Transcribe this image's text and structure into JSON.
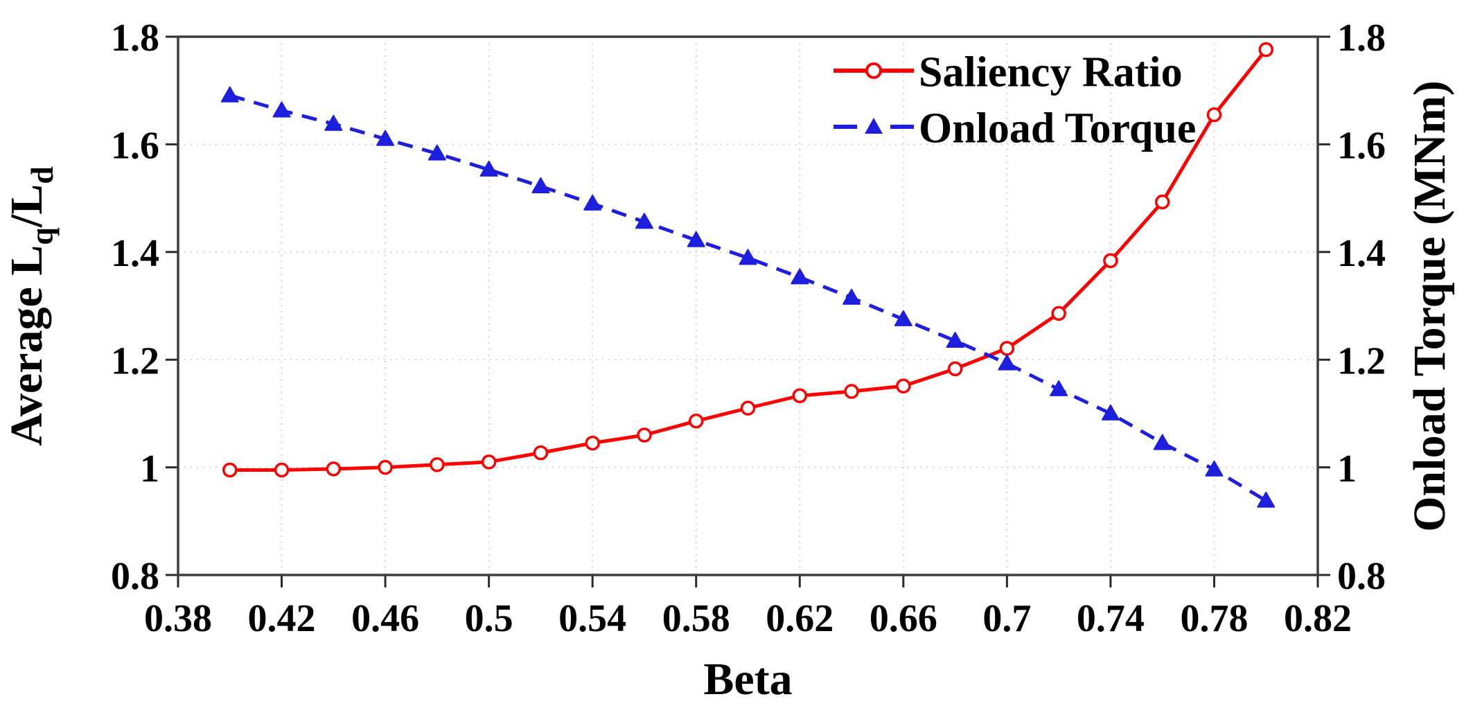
{
  "figure": {
    "background": "#ffffff"
  },
  "chart_data": {
    "type": "line",
    "title": "",
    "xlabel": "Beta",
    "ylabel_left": "Average Lq/Ld",
    "ylabel_left_segments": [
      {
        "text": "Average L",
        "sub": false
      },
      {
        "text": "q",
        "sub": true
      },
      {
        "text": "/L",
        "sub": false
      },
      {
        "text": "d",
        "sub": true
      }
    ],
    "ylabel_right": "Onload Torque (MNm)",
    "xlim": [
      0.38,
      0.82
    ],
    "ylim_left": [
      0.8,
      1.8
    ],
    "ylim_right": [
      0.8,
      1.8
    ],
    "x_ticks": [
      0.38,
      0.42,
      0.46,
      0.5,
      0.54,
      0.58,
      0.62,
      0.66,
      0.7,
      0.74,
      0.78,
      0.82
    ],
    "x_tick_labels": [
      "0.38",
      "0.42",
      "0.46",
      "0.5",
      "0.54",
      "0.58",
      "0.62",
      "0.66",
      "0.7",
      "0.74",
      "0.78",
      "0.82"
    ],
    "y_ticks": [
      0.8,
      1.0,
      1.2,
      1.4,
      1.6,
      1.8
    ],
    "y_tick_labels": [
      "0.8",
      "1",
      "1.2",
      "1.4",
      "1.6",
      "1.8"
    ],
    "grid": true,
    "grid_x_values": [
      0.42,
      0.46,
      0.5,
      0.54,
      0.58,
      0.62,
      0.66,
      0.7,
      0.74,
      0.78
    ],
    "grid_y_values": [
      1.0,
      1.2,
      1.4,
      1.6
    ],
    "x": [
      0.4,
      0.42,
      0.44,
      0.46,
      0.48,
      0.5,
      0.52,
      0.54,
      0.56,
      0.58,
      0.6,
      0.62,
      0.64,
      0.66,
      0.68,
      0.7,
      0.72,
      0.74,
      0.76,
      0.78,
      0.8
    ],
    "series": [
      {
        "name": "Saliency Ratio",
        "axis": "left",
        "color": "#ff0000",
        "line_style": "solid",
        "marker": "open-circle",
        "values": [
          0.995,
          0.995,
          0.997,
          1.0,
          1.005,
          1.01,
          1.027,
          1.045,
          1.06,
          1.086,
          1.11,
          1.133,
          1.141,
          1.151,
          1.183,
          1.221,
          1.286,
          1.384,
          1.493,
          1.655,
          1.776
        ]
      },
      {
        "name": "Onload Torque",
        "axis": "right",
        "color": "#1e1edd",
        "line_style": "dashed",
        "marker": "filled-triangle",
        "values": [
          1.691,
          1.663,
          1.638,
          1.61,
          1.583,
          1.553,
          1.522,
          1.49,
          1.456,
          1.422,
          1.389,
          1.353,
          1.315,
          1.275,
          1.235,
          1.193,
          1.145,
          1.1,
          1.045,
          0.996,
          0.938
        ]
      }
    ],
    "legend_position": "top-right",
    "colors": {
      "grid": "#d4d4d4",
      "axis_box": "#3c3c3c",
      "tick": "#2a2a2a",
      "text": "#000000"
    }
  }
}
